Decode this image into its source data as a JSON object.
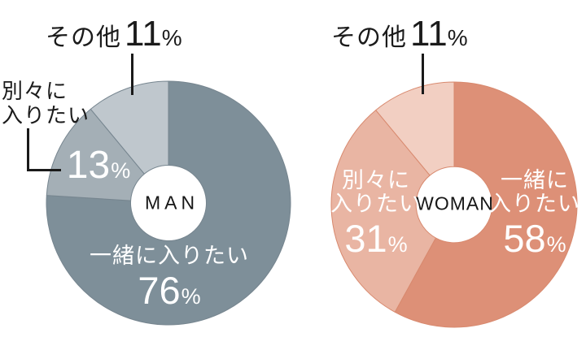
{
  "ui": {
    "background": "#ffffff",
    "text_color": "#1b1b1b",
    "on_segment_text_color": "#ffffff",
    "leader_line_color": "#1a1a1a",
    "percent_sign": "%"
  },
  "chart_data": [
    {
      "type": "pie",
      "subtype": "donut",
      "center_label": "MAN",
      "direction": "clockwise",
      "start_angle_deg": 0,
      "hole_ratio": 0.31,
      "edge_color": "#76858f",
      "segments": [
        {
          "label": "一緒に入りたい",
          "lines": [
            "一緒に入りたい"
          ],
          "value": 76,
          "color": "#7E8F99"
        },
        {
          "label": "別々に入りたい",
          "lines": [
            "別々に",
            "入りたい"
          ],
          "value": 13,
          "color": "#A4AFB6"
        },
        {
          "label": "その他",
          "lines": [
            "その他"
          ],
          "value": 11,
          "color": "#BFC7CD"
        }
      ]
    },
    {
      "type": "pie",
      "subtype": "donut",
      "center_label": "WOMAN",
      "direction": "clockwise",
      "start_angle_deg": 0,
      "hole_ratio": 0.31,
      "edge_color": "#d8896e",
      "segments": [
        {
          "label": "一緒に入りたい",
          "lines": [
            "一緒に",
            "入りたい"
          ],
          "value": 58,
          "color": "#DD9077"
        },
        {
          "label": "別々に入りたい",
          "lines": [
            "別々に",
            "入りたい"
          ],
          "value": 31,
          "color": "#E9B5A3"
        },
        {
          "label": "その他",
          "lines": [
            "その他"
          ],
          "value": 11,
          "color": "#F2CFC2"
        }
      ]
    }
  ]
}
